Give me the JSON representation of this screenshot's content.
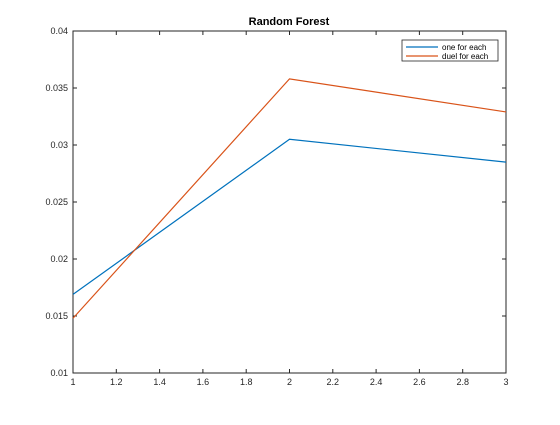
{
  "chart_data": {
    "type": "line",
    "title": "Random Forest",
    "xlabel": "",
    "ylabel": "",
    "xlim": [
      1,
      3
    ],
    "ylim": [
      0.01,
      0.04
    ],
    "x": [
      1,
      2,
      3
    ],
    "xticks": [
      "1",
      "1.2",
      "1.4",
      "1.6",
      "1.8",
      "2",
      "2.2",
      "2.4",
      "2.6",
      "2.8",
      "3"
    ],
    "xtick_values": [
      1,
      1.2,
      1.4,
      1.6,
      1.8,
      2,
      2.2,
      2.4,
      2.6,
      2.8,
      3
    ],
    "yticks": [
      "0.01",
      "0.015",
      "0.02",
      "0.025",
      "0.03",
      "0.035",
      "0.04"
    ],
    "ytick_values": [
      0.01,
      0.015,
      0.02,
      0.025,
      0.03,
      0.035,
      0.04
    ],
    "grid": false,
    "legend_position": "top-right",
    "series": [
      {
        "name": "one for each",
        "color": "#0072BD",
        "values": [
          0.0169,
          0.0305,
          0.0285
        ]
      },
      {
        "name": "duel for each",
        "color": "#D95319",
        "values": [
          0.0148,
          0.0358,
          0.0329
        ]
      }
    ]
  }
}
